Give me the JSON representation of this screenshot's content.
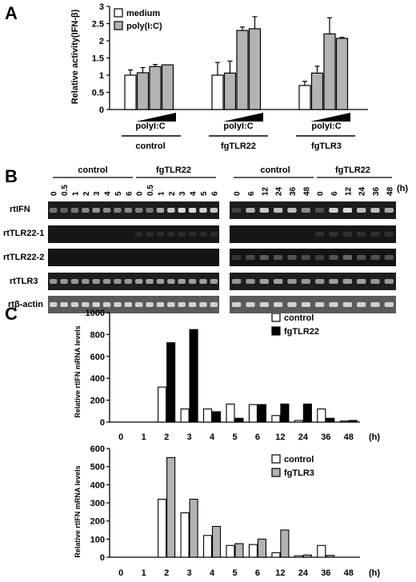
{
  "panel_labels": {
    "a": "A",
    "b": "B",
    "c": "C"
  },
  "panel_a": {
    "ylabel": "Relative activity(IFN-β)",
    "yticks": [
      "0",
      "0.5",
      "1",
      "1.5",
      "2",
      "2.5",
      "3"
    ],
    "legend": {
      "medium": "medium",
      "polyic": "poly(I:C)"
    },
    "dose_label": "polyI:C",
    "groups": [
      "control",
      "fgTLR22",
      "fgTLR3"
    ]
  },
  "panel_b": {
    "unit": "(h)",
    "left_group_labels": [
      "control",
      "fgTLR22"
    ],
    "right_group_labels": [
      "control",
      "fgTLR22"
    ],
    "left_times": [
      "0",
      "0.5",
      "1",
      "2",
      "3",
      "4",
      "5",
      "6",
      "0",
      "0.5",
      "1",
      "2",
      "3",
      "4",
      "5",
      "6"
    ],
    "right_times": [
      "0",
      "6",
      "12",
      "24",
      "36",
      "48",
      "0",
      "6",
      "12",
      "24",
      "36",
      "48"
    ],
    "rows": [
      "rtIFN",
      "rtTLR22-1",
      "rtTLR22-2",
      "rtTLR3",
      "rtβ-actin"
    ]
  },
  "panel_c": {
    "ylabel": "Relative rtIFN mRNA levels",
    "unit": "(h)",
    "categories": [
      "0",
      "1",
      "2",
      "3",
      "4",
      "5",
      "6",
      "12",
      "24",
      "36",
      "48"
    ],
    "top_yticks": [
      "0",
      "200",
      "400",
      "600",
      "800",
      "1000"
    ],
    "bottom_yticks": [
      "0",
      "100",
      "200",
      "300",
      "400",
      "500",
      "600"
    ],
    "top_legend": {
      "control": "control",
      "treat": "fgTLR22"
    },
    "bottom_legend": {
      "control": "control",
      "treat": "fgTLR3"
    }
  },
  "colors": {
    "gray_bar": "#b3b3b3",
    "black_bar": "#000000",
    "gel_bg": "#1c1c1c",
    "gel_band": "#e6e6e6"
  },
  "chart_data": [
    {
      "type": "bar",
      "panel": "A",
      "ylabel": "Relative activity(IFN-β)",
      "ylim": [
        0,
        3
      ],
      "groups": [
        "control",
        "fgTLR22",
        "fgTLR3"
      ],
      "series": [
        {
          "name": "medium",
          "values": [
            1.0,
            1.0,
            0.7
          ]
        },
        {
          "name": "poly(I:C)",
          "values": [
            [
              1.07,
              1.25,
              1.3
            ],
            [
              1.06,
              2.3,
              2.35
            ],
            [
              1.06,
              2.2,
              2.07
            ]
          ]
        }
      ],
      "errors": [
        [
          0.15,
          0.15,
          0.06,
          0.0
        ],
        [
          0.37,
          0.35,
          0.1,
          0.35
        ],
        [
          0.12,
          0.2,
          0.47,
          0.03
        ]
      ]
    },
    {
      "type": "bar",
      "panel": "C-top",
      "ylabel": "Relative rtIFN mRNA levels",
      "ylim": [
        0,
        1000
      ],
      "categories": [
        "0",
        "1",
        "2",
        "3",
        "4",
        "5",
        "6",
        "12",
        "24",
        "36",
        "48"
      ],
      "series": [
        {
          "name": "control",
          "values": [
            0,
            0,
            320,
            120,
            120,
            165,
            160,
            60,
            15,
            120,
            10
          ]
        },
        {
          "name": "fgTLR22",
          "values": [
            0,
            0,
            725,
            845,
            95,
            35,
            160,
            165,
            165,
            35,
            15
          ]
        }
      ]
    },
    {
      "type": "bar",
      "panel": "C-bottom",
      "ylabel": "Relative rtIFN mRNA levels",
      "ylim": [
        0,
        600
      ],
      "categories": [
        "0",
        "1",
        "2",
        "3",
        "4",
        "5",
        "6",
        "12",
        "24",
        "36",
        "48"
      ],
      "series": [
        {
          "name": "control",
          "values": [
            0,
            0,
            320,
            245,
            120,
            65,
            70,
            25,
            8,
            65,
            0
          ]
        },
        {
          "name": "fgTLR3",
          "values": [
            0,
            0,
            550,
            320,
            170,
            75,
            100,
            150,
            12,
            10,
            0
          ]
        }
      ]
    }
  ]
}
